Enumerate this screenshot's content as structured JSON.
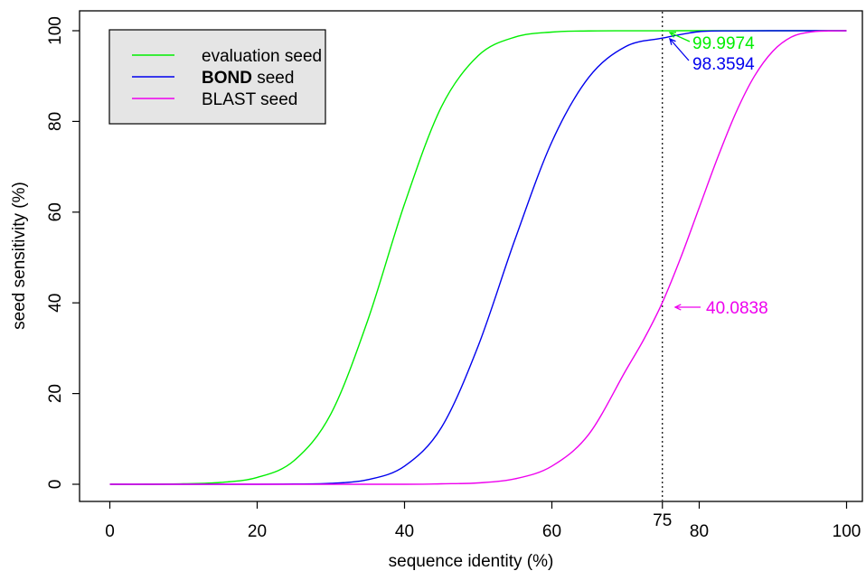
{
  "chart_data": {
    "type": "line",
    "xlabel": "sequence identity (%)",
    "ylabel": "seed sensitivity (%)",
    "xlim": [
      -4,
      104
    ],
    "ylim": [
      -4,
      104.5
    ],
    "x_ticks": [
      "0",
      "20",
      "40",
      "60",
      "80",
      "100"
    ],
    "x_extra_tick": "75",
    "y_ticks": [
      "0",
      "20",
      "40",
      "60",
      "80",
      "100"
    ],
    "grid": false,
    "legend_position": "top-left",
    "reference_line": {
      "x": 75,
      "style": "dotted"
    },
    "series": [
      {
        "name": "evaluation seed",
        "color": "#00ee00",
        "x": [
          0,
          5,
          10,
          15,
          20,
          25,
          30,
          35,
          40,
          45,
          50,
          55,
          60,
          65,
          70,
          75,
          80,
          85,
          90,
          95,
          100
        ],
        "y": [
          0,
          0,
          0.1,
          0.4,
          1.5,
          5.2,
          15.5,
          36.1,
          61.8,
          83.2,
          94.5,
          98.6,
          99.7,
          99.95,
          99.99,
          99.9974,
          100,
          100,
          100,
          100,
          100
        ]
      },
      {
        "name": "BOND seed",
        "color": "#0000ee",
        "x": [
          0,
          10,
          20,
          25,
          30,
          35,
          40,
          45,
          50,
          55,
          60,
          65,
          70,
          75,
          80,
          85,
          90,
          95,
          100
        ],
        "y": [
          0,
          0,
          0,
          0.05,
          0.2,
          1,
          4,
          12.5,
          30.5,
          54,
          75.5,
          89.7,
          96.5,
          98.3594,
          99.8,
          99.97,
          100,
          100,
          100
        ]
      },
      {
        "name": "BLAST seed",
        "color": "#ee00ee",
        "x": [
          0,
          20,
          40,
          45,
          50,
          55,
          60,
          65,
          70,
          72.5,
          75,
          77.5,
          80,
          82.5,
          85,
          87.5,
          90,
          92.5,
          95,
          97.5,
          100
        ],
        "y": [
          0,
          0,
          0,
          0.1,
          0.3,
          1.2,
          4,
          11,
          25,
          32,
          40.0838,
          50,
          61,
          72,
          82,
          90,
          95.5,
          98.6,
          99.7,
          99.95,
          100
        ]
      }
    ],
    "legend": [
      {
        "label_bold": "",
        "label": "evaluation seed",
        "color": "#00ee00"
      },
      {
        "label_bold": "BOND",
        "label": " seed",
        "color": "#0000ee"
      },
      {
        "label_bold": "",
        "label": "BLAST seed",
        "color": "#ee00ee"
      }
    ],
    "annotations": [
      {
        "text": "99.9974",
        "color": "#00ee00",
        "point": [
          75,
          99.9974
        ]
      },
      {
        "text": "98.3594",
        "color": "#0000ee",
        "point": [
          75,
          98.3594
        ]
      },
      {
        "text": "40.0838",
        "color": "#ee00ee",
        "point": [
          75,
          40.0838
        ]
      }
    ]
  }
}
